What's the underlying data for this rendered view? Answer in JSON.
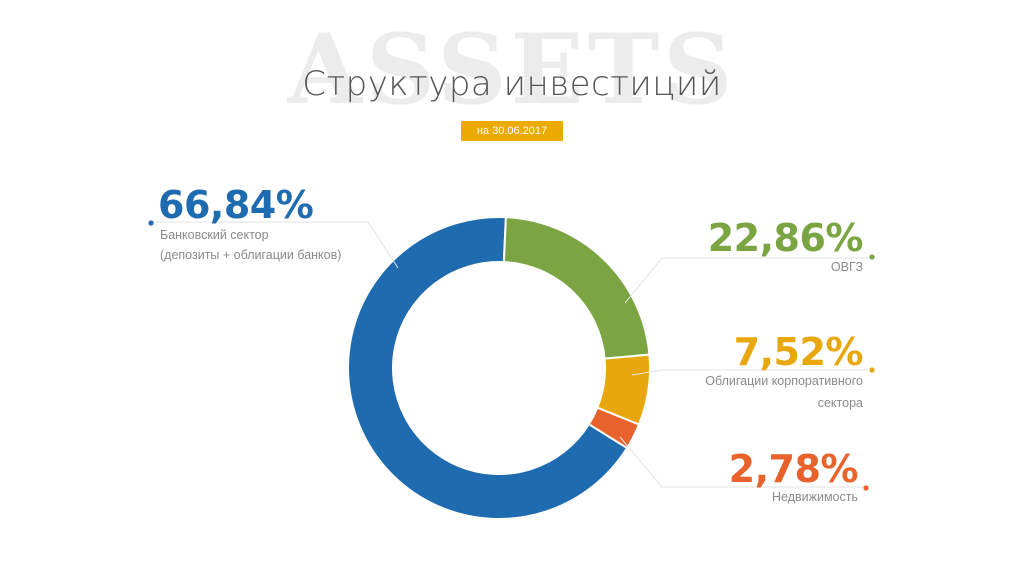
{
  "watermark": "ASSETS",
  "title": "Структура инвестиций",
  "date": "на 30.06.2017",
  "chart_data": {
    "type": "pie",
    "title": "Структура инвестиций",
    "subtitle": "на 30.06.2017",
    "slices": [
      {
        "value": "66,84%",
        "share": 66.84,
        "label1": "Банковский сектор",
        "label2": "(депозиты + облигации банков)",
        "color": "#1f6bb0"
      },
      {
        "value": "22,86%",
        "share": 22.86,
        "label1": "ОВГЗ",
        "label2": "",
        "color": "#7ba543"
      },
      {
        "value": "7,52%",
        "share": 7.52,
        "label1": "Облигации корпоративного",
        "label2": "сектора",
        "color": "#e8a70c"
      },
      {
        "value": "2,78%",
        "share": 2.78,
        "label1": "Недвижимость",
        "label2": "",
        "color": "#e8622c"
      }
    ]
  }
}
